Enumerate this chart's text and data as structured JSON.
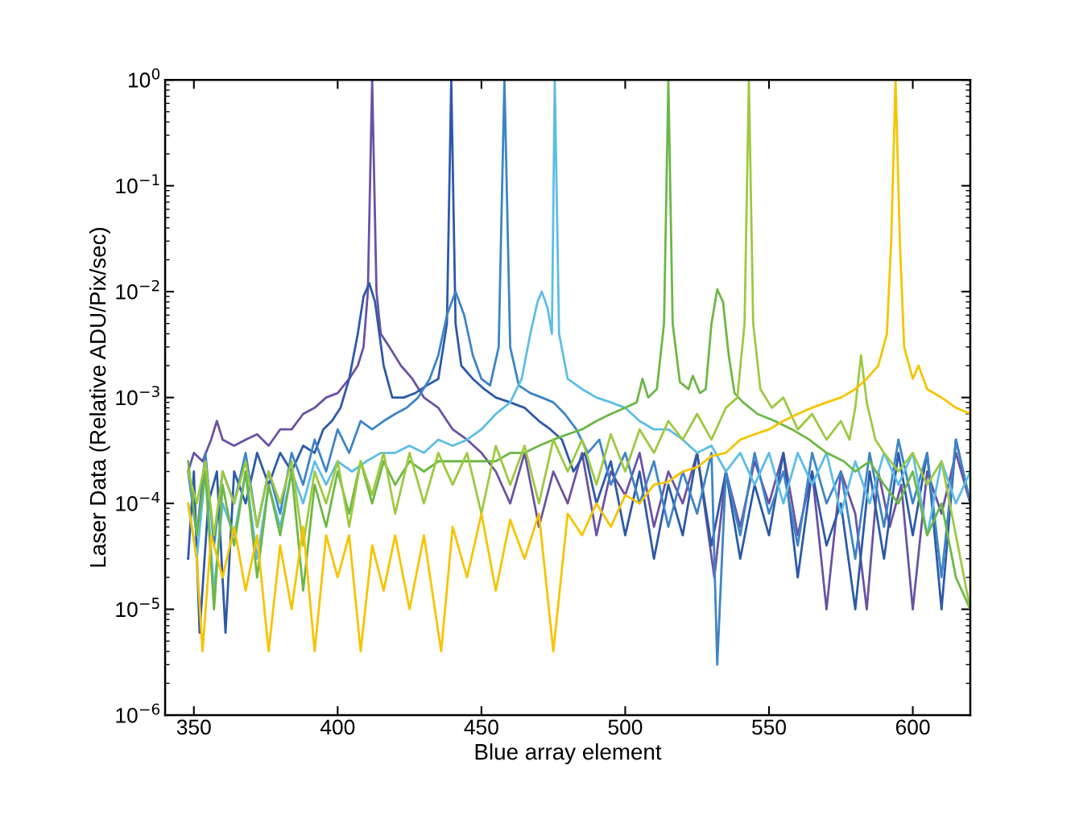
{
  "chart_data": {
    "type": "line",
    "xlabel": "Blue array element",
    "ylabel": "Laser Data (Relative ADU/Pix/sec)",
    "log": "y",
    "xlim": [
      340,
      620
    ],
    "ylim": [
      1e-06,
      1
    ],
    "xticks": [
      350,
      400,
      450,
      500,
      550,
      600
    ],
    "yticks": [
      {
        "value": 1e-06,
        "label": "10$^{−6}$"
      },
      {
        "value": 1e-05,
        "label": "10$^{−5}$"
      },
      {
        "value": 0.0001,
        "label": "10$^{−4}$"
      },
      {
        "value": 0.001,
        "label": "10$^{−3}$"
      },
      {
        "value": 0.01,
        "label": "10$^{−2}$"
      },
      {
        "value": 0.1,
        "label": "10$^{−1}$"
      },
      {
        "value": 1,
        "label": "10$^{0}$"
      }
    ],
    "grid": false,
    "line_style": "solid",
    "marker": "none",
    "series": [
      {
        "color": "#6a52a3",
        "x": [
          348,
          350,
          353,
          356,
          358,
          360,
          364,
          368,
          372,
          376,
          380,
          384,
          388,
          392,
          396,
          400,
          404,
          407,
          409,
          410.5,
          412,
          413.5,
          415,
          418,
          422,
          426,
          430,
          435,
          440,
          445,
          450,
          455,
          460,
          465,
          470,
          475,
          480,
          485,
          490,
          495,
          500,
          505,
          510,
          515,
          520,
          525,
          531,
          535,
          540,
          545,
          550,
          555,
          560,
          565,
          570,
          575,
          580,
          584,
          588,
          592,
          596,
          600,
          605,
          610,
          615,
          620
        ],
        "values": [
          0.0002,
          0.0003,
          0.00025,
          0.0004,
          0.0006,
          0.0004,
          0.00035,
          0.0004,
          0.00045,
          0.00035,
          0.0005,
          0.0005,
          0.0007,
          0.0008,
          0.001,
          0.0011,
          0.0015,
          0.002,
          0.003,
          0.01,
          1,
          0.01,
          0.004,
          0.003,
          0.002,
          0.0015,
          0.001,
          0.0008,
          0.0005,
          0.0004,
          0.0003,
          0.0002,
          0.0001,
          0.0003,
          6e-05,
          0.0002,
          0.0001,
          0.0003,
          5e-05,
          0.0002,
          0.00012,
          0.0003,
          6e-05,
          0.0002,
          0.0001,
          0.0003,
          2e-05,
          0.0002,
          6e-05,
          0.00025,
          0.0001,
          0.0003,
          5e-05,
          0.0002,
          1e-05,
          0.0002,
          8e-05,
          1e-05,
          0.0002,
          6e-05,
          0.00015,
          1e-05,
          0.0002,
          8e-05,
          0.0003,
          0.0001
        ]
      },
      {
        "color": "#2c59a8",
        "x": [
          348,
          350,
          352,
          355,
          358,
          361,
          364,
          368,
          372,
          376,
          380,
          384,
          388,
          392,
          395,
          398,
          401,
          404,
          407,
          409,
          411,
          413,
          416,
          419,
          423,
          427,
          431,
          435,
          438,
          439.5,
          441,
          443,
          447,
          451,
          455,
          460,
          465,
          470,
          474,
          478,
          482,
          486,
          490,
          495,
          500,
          505,
          510,
          515,
          520,
          525,
          530,
          535,
          540,
          545,
          550,
          555,
          560,
          565,
          570,
          575,
          580,
          585,
          590,
          595,
          600,
          605,
          610,
          615,
          620
        ],
        "values": [
          3e-05,
          0.0002,
          6e-06,
          0.0001,
          0.0002,
          6e-06,
          0.0002,
          0.0001,
          0.0003,
          0.00015,
          0.0003,
          0.0002,
          0.00035,
          0.0003,
          0.0005,
          0.0006,
          0.0008,
          0.0015,
          0.004,
          0.009,
          0.012,
          0.008,
          0.002,
          0.001,
          0.001,
          0.0011,
          0.0013,
          0.0015,
          0.005,
          1,
          0.005,
          0.002,
          0.0015,
          0.0012,
          0.001,
          0.0009,
          0.0008,
          0.0006,
          0.0005,
          0.0004,
          0.0002,
          0.0003,
          0.0001,
          0.00025,
          5e-05,
          0.0002,
          3e-05,
          0.00015,
          5e-05,
          0.0003,
          4e-05,
          0.0002,
          3e-05,
          0.00015,
          5e-05,
          0.0003,
          2e-05,
          0.0002,
          4e-05,
          0.0001,
          1e-05,
          0.0002,
          3e-05,
          0.0003,
          5e-05,
          0.0003,
          1e-05,
          0.0004,
          0.0001
        ]
      },
      {
        "color": "#3d84c6",
        "x": [
          348,
          351,
          354,
          357,
          360,
          364,
          368,
          372,
          376,
          380,
          384,
          388,
          392,
          396,
          400,
          404,
          408,
          412,
          416,
          420,
          424,
          428,
          432,
          435,
          438,
          441,
          444,
          447,
          450,
          453,
          456,
          458,
          460,
          463,
          467,
          471,
          475,
          479,
          483,
          487,
          491,
          495,
          500,
          505,
          510,
          515,
          520,
          525,
          530,
          532,
          535,
          540,
          545,
          550,
          555,
          560,
          565,
          570,
          575,
          580,
          585,
          590,
          595,
          600,
          605,
          610,
          615,
          620
        ],
        "values": [
          0.0002,
          5e-05,
          0.0003,
          4e-05,
          0.0002,
          0.0001,
          0.0003,
          6e-05,
          0.0002,
          8e-05,
          0.0003,
          0.00015,
          0.0004,
          0.0002,
          0.0005,
          0.0003,
          0.0006,
          0.0005,
          0.0006,
          0.0007,
          0.0008,
          0.001,
          0.0015,
          0.0025,
          0.006,
          0.01,
          0.006,
          0.0025,
          0.0015,
          0.0013,
          0.003,
          1,
          0.003,
          0.0013,
          0.0011,
          0.001,
          0.0009,
          0.0007,
          0.0005,
          0.0003,
          0.0004,
          0.00015,
          0.0003,
          0.0001,
          0.00025,
          6e-05,
          0.0002,
          8e-05,
          0.0003,
          3e-06,
          0.0002,
          5e-05,
          0.0003,
          8e-05,
          0.0002,
          4e-05,
          0.0003,
          0.0001,
          0.0002,
          3e-05,
          0.0003,
          6e-05,
          0.0004,
          0.0001,
          0.0003,
          2e-05,
          0.0004,
          0.0001
        ]
      },
      {
        "color": "#5cbde6",
        "x": [
          348,
          351,
          354,
          357,
          360,
          364,
          368,
          372,
          376,
          380,
          384,
          388,
          392,
          396,
          400,
          405,
          410,
          415,
          420,
          425,
          430,
          435,
          440,
          445,
          450,
          455,
          460,
          464,
          467,
          469.5,
          471,
          473,
          474.5,
          475.5,
          477,
          480,
          485,
          490,
          495,
          500,
          505,
          510,
          515,
          520,
          525,
          530,
          535,
          540,
          545,
          550,
          555,
          560,
          565,
          570,
          575,
          580,
          585,
          590,
          595,
          600,
          605,
          610,
          615,
          620
        ],
        "values": [
          0.0001,
          3e-05,
          0.0002,
          1.5e-05,
          0.0001,
          5e-05,
          0.0002,
          3e-05,
          0.00015,
          6e-05,
          0.0002,
          0.0001,
          0.00025,
          0.00015,
          0.00025,
          0.0002,
          0.00025,
          0.0003,
          0.0003,
          0.00035,
          0.0003,
          0.0004,
          0.00035,
          0.0004,
          0.0005,
          0.0007,
          0.0009,
          0.0015,
          0.004,
          0.008,
          0.01,
          0.007,
          0.004,
          1,
          0.004,
          0.0015,
          0.0012,
          0.001,
          0.0009,
          0.0008,
          0.0006,
          0.0005,
          0.0005,
          0.0004,
          0.0003,
          0.00035,
          0.0002,
          0.0003,
          0.00015,
          0.0003,
          0.0001,
          0.0003,
          0.00015,
          0.0003,
          8e-05,
          0.00025,
          0.0001,
          0.0003,
          0.00015,
          0.0003,
          5e-05,
          0.00025,
          0.0001,
          0.0002
        ]
      },
      {
        "color": "#6cb746",
        "x": [
          348,
          351,
          354,
          357,
          360,
          364,
          368,
          372,
          376,
          380,
          384,
          388,
          392,
          396,
          400,
          404,
          408,
          412,
          416,
          420,
          425,
          430,
          435,
          440,
          445,
          450,
          455,
          460,
          465,
          470,
          475,
          480,
          485,
          490,
          495,
          500,
          504,
          506,
          508,
          511,
          513.5,
          515,
          516.5,
          519,
          522,
          523.5,
          526,
          528,
          530,
          532,
          534,
          536,
          538,
          541,
          546,
          552,
          558,
          564,
          570,
          576,
          580,
          585,
          590,
          595,
          600,
          605,
          610,
          615,
          620
        ],
        "values": [
          0.00025,
          5e-05,
          0.0002,
          1e-05,
          0.00015,
          4e-05,
          0.0002,
          2e-05,
          0.00015,
          5e-05,
          0.0002,
          1.5e-05,
          0.00015,
          6e-05,
          0.0002,
          8e-05,
          0.00025,
          0.0001,
          0.00025,
          0.00015,
          0.00025,
          0.0002,
          0.00025,
          0.00025,
          0.00025,
          0.00025,
          0.00025,
          0.0003,
          0.0003,
          0.00035,
          0.0004,
          0.00045,
          0.0005,
          0.0006,
          0.0007,
          0.0008,
          0.0009,
          0.0015,
          0.001,
          0.0012,
          0.005,
          1,
          0.005,
          0.0014,
          0.0012,
          0.0016,
          0.0011,
          0.0012,
          0.005,
          0.0105,
          0.008,
          0.0025,
          0.0011,
          0.0009,
          0.0007,
          0.0006,
          0.0005,
          0.0004,
          0.0003,
          0.00025,
          0.0002,
          0.00025,
          0.00015,
          0.0001,
          0.0002,
          5e-05,
          0.0001,
          2e-05,
          1e-05
        ]
      },
      {
        "color": "#9dc93f",
        "x": [
          348,
          351,
          354,
          357,
          360,
          364,
          368,
          372,
          376,
          380,
          384,
          388,
          392,
          396,
          400,
          404,
          408,
          412,
          416,
          420,
          425,
          430,
          435,
          440,
          445,
          450,
          455,
          460,
          465,
          470,
          475,
          480,
          485,
          490,
          495,
          500,
          505,
          510,
          515,
          520,
          525,
          530,
          535,
          539,
          541.5,
          543,
          544.5,
          547,
          551,
          555,
          560,
          565,
          570,
          575,
          578,
          580,
          582,
          584,
          587,
          590,
          595,
          600,
          605,
          610,
          615,
          620
        ],
        "values": [
          0.0002,
          0.0001,
          0.00025,
          5e-05,
          0.0002,
          0.0001,
          0.00025,
          6e-05,
          0.0002,
          0.0001,
          0.00025,
          4e-05,
          0.0002,
          0.0001,
          0.00025,
          6e-05,
          0.00025,
          0.00012,
          0.0003,
          8e-05,
          0.0003,
          0.0001,
          0.0003,
          0.00015,
          0.0003,
          8e-05,
          0.00035,
          0.00015,
          0.00035,
          0.0001,
          0.0004,
          0.0002,
          0.0004,
          0.00015,
          0.00045,
          0.0002,
          0.0005,
          0.0003,
          0.0006,
          0.0004,
          0.0007,
          0.0004,
          0.0008,
          0.001,
          0.005,
          1,
          0.005,
          0.0012,
          0.0008,
          0.001,
          0.0005,
          0.0007,
          0.0004,
          0.0006,
          0.0004,
          0.0008,
          0.0025,
          0.0009,
          0.0004,
          0.0003,
          0.0002,
          0.0003,
          0.00015,
          0.00025,
          5e-05,
          1e-05
        ]
      },
      {
        "color": "#f6c400",
        "x": [
          348,
          351,
          353,
          356,
          360,
          364,
          368,
          372,
          376,
          380,
          384,
          388,
          392,
          396,
          400,
          404,
          408,
          412,
          416,
          420,
          425,
          430,
          436,
          440,
          445,
          450,
          455,
          460,
          465,
          470,
          475,
          480,
          485,
          490,
          495,
          500,
          505,
          510,
          515,
          520,
          525,
          530,
          535,
          540,
          545,
          550,
          555,
          560,
          565,
          570,
          575,
          580,
          584,
          588,
          591,
          592.5,
          594,
          595.5,
          597,
          600,
          602,
          605,
          610,
          615,
          620
        ],
        "values": [
          0.0001,
          3e-05,
          4e-06,
          5e-05,
          2e-05,
          6e-05,
          1.5e-05,
          5e-05,
          4e-06,
          4e-05,
          1e-05,
          6e-05,
          4e-06,
          5e-05,
          2e-05,
          5e-05,
          4e-06,
          4e-05,
          1.5e-05,
          5e-05,
          1e-05,
          5e-05,
          4e-06,
          6e-05,
          2e-05,
          8e-05,
          1.5e-05,
          7e-05,
          3e-05,
          8e-05,
          4e-06,
          8e-05,
          5e-05,
          0.0001,
          6e-05,
          0.00012,
          0.0001,
          0.00015,
          0.00016,
          0.0002,
          0.00022,
          0.00028,
          0.0003,
          0.0004,
          0.00045,
          0.0005,
          0.0006,
          0.0007,
          0.0008,
          0.0009,
          0.001,
          0.0012,
          0.0015,
          0.002,
          0.004,
          0.03,
          1,
          0.03,
          0.003,
          0.0015,
          0.002,
          0.0012,
          0.001,
          0.0008,
          0.0007
        ]
      }
    ]
  }
}
